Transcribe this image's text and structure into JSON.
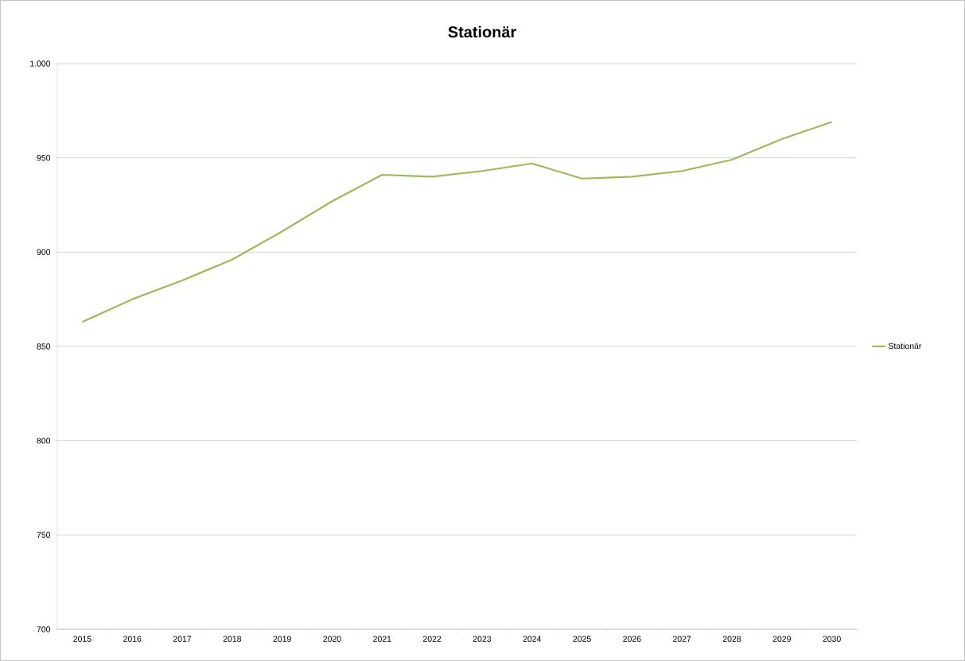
{
  "chart_data": {
    "type": "line",
    "title": "Stationär",
    "categories": [
      "2015",
      "2016",
      "2017",
      "2018",
      "2019",
      "2020",
      "2021",
      "2022",
      "2023",
      "2024",
      "2025",
      "2026",
      "2027",
      "2028",
      "2029",
      "2030"
    ],
    "series": [
      {
        "name": "Stationär",
        "color": "#9bbb59",
        "values": [
          863,
          875,
          885,
          896,
          911,
          927,
          941,
          940,
          943,
          947,
          939,
          940,
          943,
          949,
          960,
          969
        ]
      }
    ],
    "ylim": [
      700,
      1000
    ],
    "yticks": [
      700,
      750,
      800,
      850,
      900,
      950,
      {
        "value": 1000,
        "label": "1.000"
      }
    ],
    "grid": "y",
    "legend": "right",
    "marker": "none",
    "line_style": "solid"
  }
}
